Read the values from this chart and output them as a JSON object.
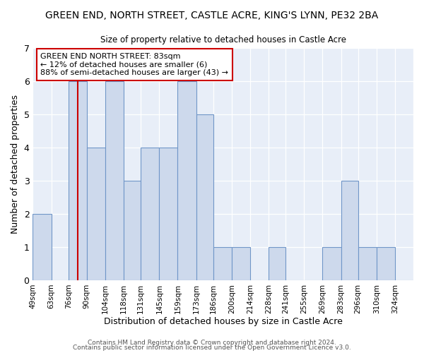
{
  "title": "GREEN END, NORTH STREET, CASTLE ACRE, KING'S LYNN, PE32 2BA",
  "subtitle": "Size of property relative to detached houses in Castle Acre",
  "xlabel": "Distribution of detached houses by size in Castle Acre",
  "ylabel": "Number of detached properties",
  "bins": [
    "49sqm",
    "63sqm",
    "76sqm",
    "90sqm",
    "104sqm",
    "118sqm",
    "131sqm",
    "145sqm",
    "159sqm",
    "173sqm",
    "186sqm",
    "200sqm",
    "214sqm",
    "228sqm",
    "241sqm",
    "255sqm",
    "269sqm",
    "283sqm",
    "296sqm",
    "310sqm",
    "324sqm"
  ],
  "bin_edges": [
    49,
    63,
    76,
    90,
    104,
    118,
    131,
    145,
    159,
    173,
    186,
    200,
    214,
    228,
    241,
    255,
    269,
    283,
    296,
    310,
    324
  ],
  "counts": [
    2,
    0,
    6,
    4,
    6,
    3,
    4,
    4,
    6,
    5,
    1,
    1,
    0,
    1,
    0,
    0,
    1,
    3,
    1,
    1,
    0
  ],
  "bar_color": "#cdd9ec",
  "bar_edge_color": "#7096c8",
  "property_value": 83,
  "vline_x": 83,
  "vline_color": "#cc0000",
  "annotation_text": "GREEN END NORTH STREET: 83sqm\n← 12% of detached houses are smaller (6)\n88% of semi-detached houses are larger (43) →",
  "annotation_box_color": "#ffffff",
  "annotation_box_edge_color": "#cc0000",
  "ylim": [
    0,
    7
  ],
  "yticks": [
    0,
    1,
    2,
    3,
    4,
    5,
    6,
    7
  ],
  "footer1": "Contains HM Land Registry data © Crown copyright and database right 2024.",
  "footer2": "Contains public sector information licensed under the Open Government Licence v3.0.",
  "bg_color": "#ffffff",
  "plot_bg_color": "#e8eef8"
}
